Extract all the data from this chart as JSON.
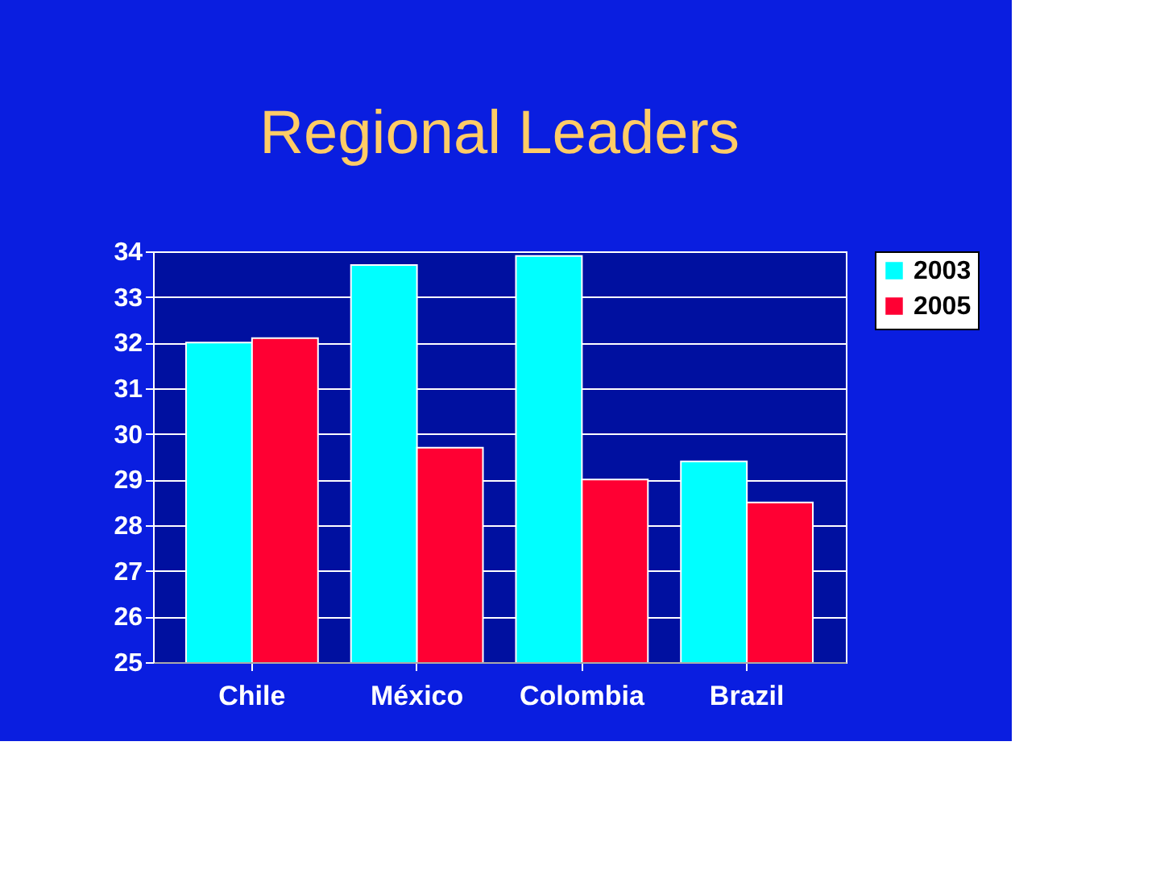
{
  "chart_data": {
    "type": "bar",
    "title": "Regional Leaders",
    "categories": [
      "Chile",
      "México",
      "Colombia",
      "Brazil"
    ],
    "series": [
      {
        "name": "2003",
        "color": "#00ffff",
        "values": [
          32.0,
          33.7,
          33.9,
          29.4
        ]
      },
      {
        "name": "2005",
        "color": "#ff0033",
        "values": [
          32.1,
          29.7,
          29.0,
          28.5
        ]
      }
    ],
    "ylim": [
      25,
      34
    ],
    "yticks": [
      25,
      26,
      27,
      28,
      29,
      30,
      31,
      32,
      33,
      34
    ],
    "grid": "y",
    "legend": "right"
  }
}
